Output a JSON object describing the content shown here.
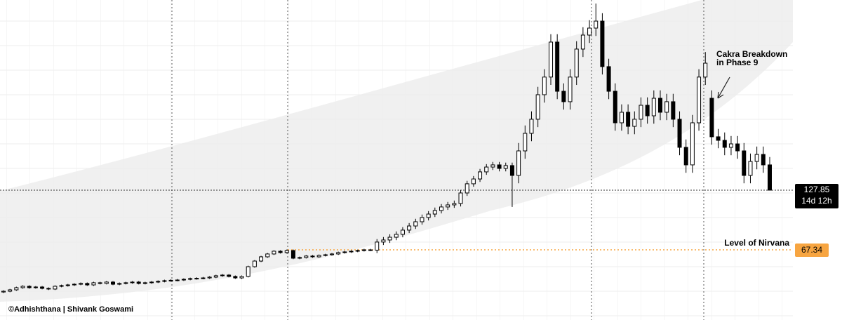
{
  "chart_data": {
    "type": "candlestick",
    "ylim": [
      -3.9,
      320.8
    ],
    "up_color": "#ffffff",
    "down_color": "#000000",
    "edge_color": "#000000",
    "open": [
      24.5,
      25.3,
      26.7,
      28.9,
      30.3,
      28.9,
      29.6,
      28.2,
      27.5,
      30.3,
      31.0,
      31.7,
      32.4,
      33.2,
      31.7,
      33.9,
      33.2,
      34.6,
      32.4,
      33.2,
      33.9,
      34.6,
      33.2,
      33.9,
      34.6,
      35.3,
      36.0,
      36.4,
      36.7,
      37.4,
      38.1,
      38.4,
      38.8,
      39.6,
      41.0,
      41.7,
      40.3,
      38.8,
      40.3,
      50.2,
      55.9,
      60.2,
      63.1,
      65.9,
      64.5,
      66.6,
      58.8,
      59.5,
      61.0,
      60.2,
      61.6,
      62.3,
      63.1,
      64.5,
      65.2,
      65.9,
      66.6,
      67.3,
      67.0,
      75.2,
      77.3,
      80.1,
      83.0,
      87.3,
      91.5,
      95.8,
      100.1,
      103.6,
      107.2,
      110.8,
      112.9,
      114.3,
      125.0,
      134.3,
      139.2,
      146.4,
      151.3,
      153.5,
      149.9,
      152.8,
      142.8,
      167.7,
      185.5,
      199.8,
      224.7,
      242.6,
      278.1,
      228.2,
      217.6,
      242.6,
      271.0,
      285.2,
      292.3,
      299.4,
      253.2,
      228.2,
      196.2,
      206.9,
      192.6,
      199.8,
      214.0,
      203.3,
      221.1,
      206.9,
      217.6,
      199.8,
      171.3,
      153.5,
      196.2,
      242.6,
      221.1,
      182.0,
      178.4,
      171.3,
      174.8,
      167.7,
      142.8,
      157.0,
      164.1,
      153.5
    ],
    "high": [
      26.3,
      27.7,
      29.9,
      31.3,
      31.3,
      30.6,
      30.6,
      29.2,
      31.3,
      32.0,
      32.7,
      33.4,
      34.2,
      34.2,
      34.9,
      34.9,
      35.6,
      35.6,
      34.2,
      34.9,
      35.6,
      35.6,
      34.9,
      35.6,
      36.3,
      37.0,
      37.4,
      37.7,
      38.4,
      39.1,
      39.4,
      39.8,
      40.6,
      42.0,
      42.7,
      42.7,
      41.3,
      41.3,
      51.2,
      56.9,
      61.2,
      64.1,
      66.9,
      66.9,
      67.6,
      67.6,
      60.5,
      62.0,
      62.0,
      62.6,
      63.3,
      64.1,
      65.5,
      66.2,
      66.9,
      67.6,
      68.3,
      68.3,
      78.2,
      80.3,
      83.1,
      86.0,
      90.3,
      94.5,
      98.8,
      103.1,
      106.6,
      110.2,
      113.8,
      115.9,
      117.3,
      128.0,
      137.3,
      142.2,
      149.4,
      154.3,
      156.5,
      156.5,
      155.8,
      155.8,
      175.7,
      193.5,
      207.8,
      232.7,
      250.6,
      286.1,
      286.1,
      236.2,
      250.6,
      279.0,
      293.2,
      300.3,
      317.2,
      307.4,
      261.2,
      236.2,
      214.9,
      214.9,
      207.8,
      222.0,
      222.0,
      229.1,
      229.1,
      225.6,
      225.6,
      207.8,
      179.3,
      204.2,
      250.6,
      268.0,
      229.1,
      190.0,
      186.4,
      182.8,
      182.8,
      175.7,
      165.0,
      172.1,
      172.1,
      161.5
    ],
    "low": [
      23.5,
      24.3,
      25.7,
      27.9,
      27.9,
      27.9,
      27.2,
      26.5,
      26.5,
      29.3,
      30.0,
      30.7,
      31.4,
      30.7,
      30.7,
      32.2,
      32.2,
      31.4,
      31.4,
      32.2,
      32.9,
      32.2,
      32.2,
      32.9,
      33.6,
      34.3,
      35.0,
      35.4,
      35.7,
      36.4,
      37.1,
      37.4,
      37.8,
      38.6,
      40.0,
      39.3,
      37.8,
      37.8,
      39.3,
      49.2,
      54.9,
      59.2,
      62.1,
      63.5,
      63.5,
      57.8,
      57.8,
      58.5,
      59.2,
      59.2,
      60.6,
      61.3,
      62.1,
      63.5,
      64.2,
      64.9,
      65.6,
      66.0,
      64.0,
      72.2,
      74.3,
      77.1,
      80.0,
      84.3,
      88.5,
      92.8,
      97.1,
      100.6,
      104.2,
      107.8,
      109.9,
      111.3,
      122.0,
      131.3,
      136.2,
      143.4,
      148.3,
      146.9,
      146.9,
      110.8,
      134.8,
      159.7,
      177.5,
      191.8,
      216.7,
      234.6,
      220.2,
      209.6,
      209.6,
      234.6,
      263.0,
      277.2,
      284.3,
      245.2,
      220.2,
      188.2,
      188.2,
      184.6,
      184.6,
      191.8,
      195.3,
      195.3,
      198.9,
      198.9,
      191.8,
      163.3,
      145.5,
      145.5,
      188.2,
      234.6,
      174.0,
      170.4,
      163.3,
      163.3,
      159.7,
      134.8,
      134.8,
      149.0,
      145.5,
      127.85
    ],
    "close": [
      25.3,
      26.7,
      28.9,
      30.3,
      28.9,
      29.6,
      28.2,
      27.5,
      30.3,
      31.0,
      31.7,
      32.4,
      33.2,
      31.7,
      33.9,
      33.2,
      34.6,
      32.4,
      33.2,
      33.9,
      34.6,
      33.2,
      33.9,
      34.6,
      35.3,
      36.0,
      36.4,
      36.7,
      37.4,
      38.1,
      38.4,
      38.8,
      39.6,
      41.0,
      41.7,
      40.3,
      38.8,
      40.3,
      50.2,
      55.9,
      60.2,
      63.1,
      65.9,
      64.5,
      66.6,
      58.8,
      59.5,
      61.0,
      60.2,
      61.6,
      62.3,
      63.1,
      64.5,
      65.2,
      65.9,
      66.6,
      67.3,
      67.0,
      75.2,
      77.3,
      80.1,
      83.0,
      87.3,
      91.5,
      95.8,
      100.1,
      103.6,
      107.2,
      110.8,
      112.9,
      114.3,
      125.0,
      134.3,
      139.2,
      146.4,
      151.3,
      153.5,
      149.9,
      152.8,
      142.8,
      167.7,
      185.5,
      199.8,
      224.7,
      242.6,
      278.1,
      228.2,
      217.6,
      242.6,
      271.0,
      285.2,
      292.3,
      299.4,
      253.2,
      228.2,
      196.2,
      206.9,
      192.6,
      199.8,
      214.0,
      203.3,
      221.1,
      206.9,
      217.6,
      199.8,
      171.3,
      153.5,
      196.2,
      242.6,
      256.7,
      182.0,
      178.4,
      171.3,
      174.8,
      167.7,
      142.8,
      157.0,
      164.1,
      153.5,
      127.85
    ],
    "last_time_label": "14d 12h",
    "level": {
      "label": "Level of Nirvana",
      "value": 67.34,
      "color": "#f7a541"
    },
    "annotation": [
      "Cakra Breakdown",
      "in Phase 9"
    ],
    "watermark": "©Adhishthana | Shivank Goswami"
  }
}
